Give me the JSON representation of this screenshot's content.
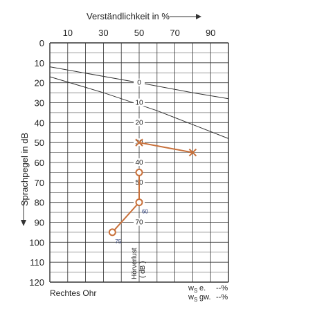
{
  "chart_data": {
    "type": "line",
    "x_axis_title": "Verständlichkeit in %",
    "y_axis_title": "Sprachpegel in dB",
    "x_ticks": [
      "10",
      "20",
      "30",
      "40",
      "50",
      "60",
      "70",
      "80",
      "90",
      "100"
    ],
    "x_tick_labels_shown": [
      "10",
      "30",
      "50",
      "70",
      "90"
    ],
    "y_ticks": [
      "0",
      "10",
      "20",
      "30",
      "40",
      "50",
      "60",
      "70",
      "80",
      "90",
      "100",
      "110",
      "120"
    ],
    "xlim": [
      0,
      100
    ],
    "ylim": [
      0,
      120
    ],
    "hearing_loss_scale": {
      "title": "Hörverlust",
      "unit": "( dB )",
      "labels": [
        "0",
        "10",
        "20",
        "30",
        "40",
        "50",
        "60",
        "70"
      ]
    },
    "series": [
      {
        "marker": "x",
        "color": "#c8703a",
        "points": [
          {
            "x": 50,
            "y": 50
          },
          {
            "x": 80,
            "y": 55
          }
        ]
      },
      {
        "marker": "o",
        "color": "#c8703a",
        "points": [
          {
            "x": 50,
            "y": 65
          },
          {
            "x": 50,
            "y": 80,
            "label": "60"
          },
          {
            "x": 35,
            "y": 95,
            "label": "75"
          }
        ]
      }
    ],
    "reference_curves": [
      {
        "points": [
          {
            "x": 0,
            "y": 12
          },
          {
            "x": 50,
            "y": 20
          },
          {
            "x": 80,
            "y": 25
          },
          {
            "x": 100,
            "y": 28
          }
        ]
      },
      {
        "points": [
          {
            "x": 0,
            "y": 17
          },
          {
            "x": 30,
            "y": 25
          },
          {
            "x": 60,
            "y": 34
          },
          {
            "x": 80,
            "y": 41
          },
          {
            "x": 100,
            "y": 48
          }
        ]
      }
    ],
    "grid": true
  },
  "footer": {
    "ear_label": "Rechtes Ohr",
    "ws_e_label": "e.",
    "ws_e_value": "--%",
    "ws_gw_label": "gw.",
    "ws_gw_value": "--%",
    "ws_symbol": "w",
    "ws_sub": "S"
  }
}
